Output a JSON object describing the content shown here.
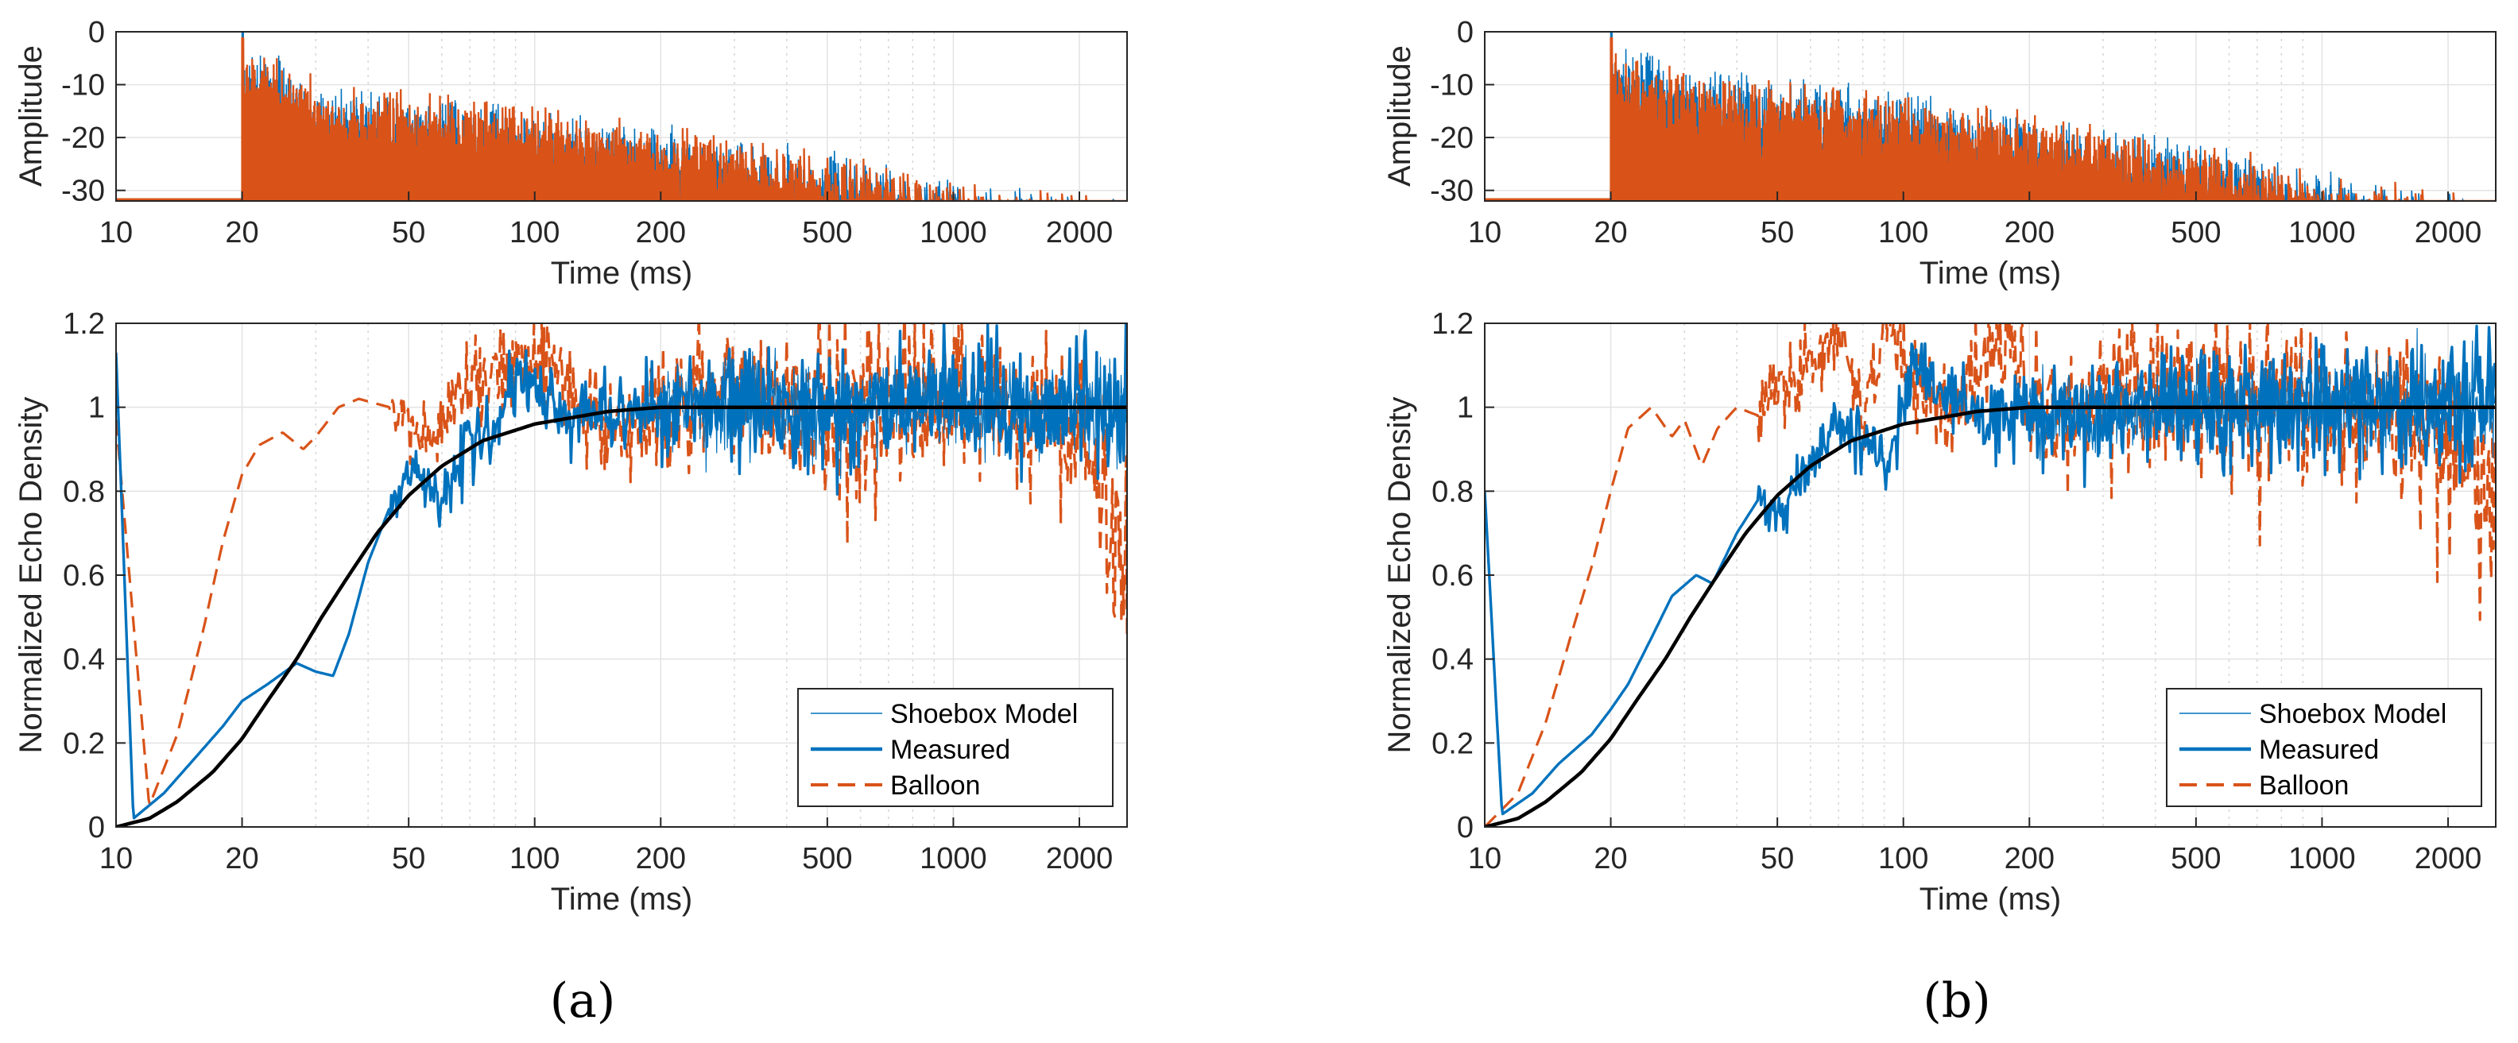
{
  "colors": {
    "shoebox": "#0072BD",
    "measured": "#0072BD",
    "balloon": "#D95319",
    "fit": "#000000"
  },
  "chart_data": [
    {
      "type": "line",
      "panel": "(a)",
      "caption": "(a)",
      "top": {
        "xlabel": "Time (ms)",
        "ylabel": "Amplitude",
        "xscale": "log",
        "xlim": [
          10,
          2600
        ],
        "ylim": [
          -32,
          0
        ],
        "xticks": [
          10,
          20,
          50,
          100,
          200,
          500,
          1000,
          2000
        ],
        "xtick_labels": [
          "10",
          "20",
          "50",
          "100",
          "200",
          "500",
          "1000",
          "2000"
        ],
        "yticks": [
          0,
          -10,
          -20,
          -30
        ],
        "ytick_labels": [
          "0",
          "-10",
          "-20",
          "-30"
        ],
        "onset_ms": 20,
        "series": [
          {
            "name": "Shoebox Model",
            "envelope": {
              "x": [
                20,
                25,
                30,
                50,
                100,
                200,
                500,
                1000,
                2600
              ],
              "y": [
                0,
                -4,
                -9,
                -11,
                -14,
                -17,
                -22,
                -27,
                -31
              ]
            }
          },
          {
            "name": "Balloon",
            "envelope": {
              "x": [
                20,
                25,
                30,
                50,
                100,
                200,
                500,
                1000,
                2600
              ],
              "y": [
                -2,
                -4,
                -8,
                -10,
                -13,
                -17,
                -22,
                -27,
                -31
              ]
            }
          }
        ]
      },
      "bottom": {
        "xlabel": "Time (ms)",
        "ylabel": "Normalized Echo Density",
        "xscale": "log",
        "xlim": [
          10,
          2600
        ],
        "ylim": [
          0,
          1.2
        ],
        "xticks": [
          10,
          20,
          50,
          100,
          200,
          500,
          1000,
          2000
        ],
        "xtick_labels": [
          "10",
          "20",
          "50",
          "100",
          "200",
          "500",
          "1000",
          "2000"
        ],
        "yticks": [
          0,
          0.2,
          0.4,
          0.6,
          0.8,
          1,
          1.2
        ],
        "ytick_labels": [
          "0",
          "0.2",
          "0.4",
          "0.6",
          "0.8",
          "1",
          "1.2"
        ],
        "legend": [
          "Shoebox Model",
          "Measured",
          "Balloon"
        ],
        "legend_loc": "lower-right",
        "series": [
          {
            "name": "Shoebox Model",
            "x": [
              10,
              12,
              14,
              17,
              20,
              23,
              27,
              31,
              36,
              42,
              50,
              60,
              75,
              100,
              150,
              200,
              300,
              500,
              1000,
              2600
            ],
            "y": [
              0,
              0.02,
              0.06,
              0.13,
              0.21,
              0.3,
              0.4,
              0.5,
              0.6,
              0.7,
              0.79,
              0.86,
              0.92,
              0.96,
              0.99,
              1,
              1,
              1,
              1,
              1
            ]
          },
          {
            "name": "Measured",
            "x": [
              10,
              11,
              13,
              15,
              18,
              20,
              23,
              27,
              30,
              33,
              36,
              40,
              45,
              50,
              55,
              60,
              65,
              70,
              80,
              90,
              95,
              100,
              120,
              150,
              200,
              300,
              500,
              1000,
              2600
            ],
            "y": [
              1.13,
              0.02,
              0.08,
              0.15,
              0.24,
              0.3,
              0.34,
              0.39,
              0.37,
              0.36,
              0.46,
              0.63,
              0.76,
              0.84,
              0.84,
              0.78,
              0.85,
              0.92,
              0.95,
              1.04,
              1.07,
              1.03,
              0.98,
              0.99,
              1.0,
              1.0,
              1.0,
              1.0,
              1.0
            ]
          },
          {
            "name": "Balloon",
            "x": [
              10,
              12,
              14,
              16,
              18,
              20,
              22,
              25,
              28,
              30,
              34,
              38,
              45,
              50,
              55,
              60,
              70,
              80,
              100,
              120,
              150,
              200,
              300,
              500,
              1000,
              2000,
              2600
            ],
            "y": [
              0.97,
              0.05,
              0.22,
              0.45,
              0.68,
              0.84,
              0.91,
              0.94,
              0.9,
              0.93,
              1.0,
              1.02,
              1.0,
              0.96,
              0.91,
              0.95,
              1.1,
              1.06,
              1.15,
              1.05,
              0.95,
              0.98,
              1.05,
              1.0,
              1.0,
              0.95,
              0.6
            ]
          }
        ]
      }
    },
    {
      "type": "line",
      "panel": "(b)",
      "caption": "(b)",
      "top": {
        "xlabel": "Time (ms)",
        "ylabel": "Amplitude",
        "xscale": "log",
        "xlim": [
          10,
          2600
        ],
        "ylim": [
          -32,
          0
        ],
        "xticks": [
          10,
          20,
          50,
          100,
          200,
          500,
          1000,
          2000
        ],
        "xtick_labels": [
          "10",
          "20",
          "50",
          "100",
          "200",
          "500",
          "1000",
          "2000"
        ],
        "yticks": [
          0,
          -10,
          -20,
          -30
        ],
        "ytick_labels": [
          "0",
          "-10",
          "-20",
          "-30"
        ],
        "onset_ms": 20,
        "series": [
          {
            "name": "Shoebox Model",
            "envelope": {
              "x": [
                20,
                25,
                30,
                50,
                100,
                200,
                500,
                1000,
                2600
              ],
              "y": [
                0,
                -3,
                -5,
                -8,
                -10,
                -15,
                -20,
                -26,
                -31
              ]
            }
          },
          {
            "name": "Balloon",
            "envelope": {
              "x": [
                20,
                25,
                30,
                50,
                100,
                200,
                500,
                1000,
                2600
              ],
              "y": [
                -3,
                -5,
                -7,
                -8,
                -11,
                -14,
                -20,
                -26,
                -31
              ]
            }
          }
        ]
      },
      "bottom": {
        "xlabel": "Time (ms)",
        "ylabel": "Normalized Echo Density",
        "xscale": "log",
        "xlim": [
          10,
          2600
        ],
        "ylim": [
          0,
          1.2
        ],
        "xticks": [
          10,
          20,
          50,
          100,
          200,
          500,
          1000,
          2000
        ],
        "xtick_labels": [
          "10",
          "20",
          "50",
          "100",
          "200",
          "500",
          "1000",
          "2000"
        ],
        "yticks": [
          0,
          0.2,
          0.4,
          0.6,
          0.8,
          1,
          1.2
        ],
        "ytick_labels": [
          "0",
          "0.2",
          "0.4",
          "0.6",
          "0.8",
          "1",
          "1.2"
        ],
        "legend": [
          "Shoebox Model",
          "Measured",
          "Balloon"
        ],
        "legend_loc": "lower-right",
        "series": [
          {
            "name": "Shoebox Model",
            "x": [
              10,
              12,
              14,
              17,
              20,
              23,
              27,
              31,
              36,
              42,
              50,
              60,
              75,
              100,
              150,
              200,
              300,
              500,
              1000,
              2600
            ],
            "y": [
              0,
              0.02,
              0.06,
              0.13,
              0.21,
              0.3,
              0.4,
              0.5,
              0.6,
              0.7,
              0.79,
              0.86,
              0.92,
              0.96,
              0.99,
              1,
              1,
              1,
              1,
              1
            ]
          },
          {
            "name": "Measured",
            "x": [
              10,
              11,
              13,
              15,
              18,
              20,
              22,
              25,
              28,
              32,
              35,
              40,
              45,
              50,
              55,
              60,
              70,
              80,
              90,
              100,
              110,
              120,
              150,
              200,
              300,
              500,
              1000,
              2600
            ],
            "y": [
              0.8,
              0.03,
              0.08,
              0.15,
              0.22,
              0.28,
              0.34,
              0.45,
              0.55,
              0.6,
              0.58,
              0.7,
              0.78,
              0.74,
              0.82,
              0.87,
              0.97,
              0.92,
              0.86,
              1.0,
              1.12,
              1.05,
              0.98,
              0.97,
              1.0,
              1.0,
              1.0,
              1.0
            ]
          },
          {
            "name": "Balloon",
            "x": [
              10,
              12,
              14,
              16,
              18,
              20,
              22,
              25,
              28,
              30,
              33,
              36,
              40,
              45,
              50,
              55,
              60,
              70,
              80,
              90,
              100,
              120,
              150,
              180,
              200,
              250,
              300,
              500,
              1000,
              2000,
              2600
            ],
            "y": [
              0.0,
              0.08,
              0.25,
              0.45,
              0.62,
              0.8,
              0.95,
              1.0,
              0.93,
              0.97,
              0.86,
              0.95,
              1.0,
              0.98,
              1.07,
              1.05,
              1.1,
              1.2,
              0.98,
              1.18,
              1.12,
              0.98,
              1.1,
              1.2,
              1.0,
              0.95,
              1.05,
              1.02,
              1.0,
              0.95,
              0.72
            ]
          }
        ]
      }
    }
  ]
}
